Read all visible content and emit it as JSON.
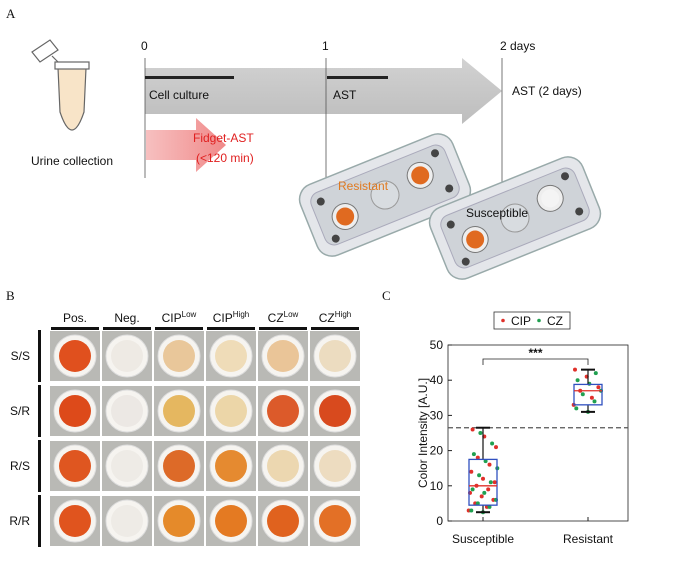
{
  "panel_a": {
    "label": "A",
    "tube_caption": "Urine collection",
    "timeline_ticks": [
      "0",
      "1",
      "2 days"
    ],
    "bar_labels": [
      "Cell culture",
      "AST"
    ],
    "arrow_caption": "AST (2 days)",
    "fidget_title": "Fidget-AST",
    "fidget_time": "(<120 min)",
    "device_labels": [
      "Resistant",
      "Susceptible"
    ]
  },
  "panel_b": {
    "label": "B",
    "columns": [
      {
        "name": "Pos."
      },
      {
        "name": "Neg."
      },
      {
        "name": "CIP",
        "sup": "Low"
      },
      {
        "name": "CIP",
        "sup": "High"
      },
      {
        "name": "CZ",
        "sup": "Low"
      },
      {
        "name": "CZ",
        "sup": "High"
      }
    ],
    "rows": [
      "S/S",
      "S/R",
      "R/S",
      "R/R"
    ]
  },
  "chart_data": {
    "type": "box",
    "panel_label": "C",
    "ylabel": "Color Intensity [A.U.]",
    "categories": [
      "Susceptible",
      "Resistant"
    ],
    "ylim": [
      0,
      50
    ],
    "yticks": [
      0,
      10,
      20,
      30,
      40,
      50
    ],
    "boxes": [
      {
        "min": 2.5,
        "q1": 4.5,
        "median": 10,
        "q3": 17.5,
        "max": 26.5
      },
      {
        "min": 31,
        "q1": 33,
        "median": 37,
        "q3": 38.8,
        "max": 43
      }
    ],
    "box_color": "#3050c0",
    "median_color": "#e0302a",
    "threshold": 26.5,
    "significance": "***",
    "series": [
      {
        "name": "CIP",
        "color": "#e0302a",
        "values": [
          [
            3,
            4,
            5,
            6,
            7,
            8,
            9,
            10,
            11,
            12,
            14,
            16,
            18,
            21,
            24,
            26
          ],
          [
            33,
            35,
            37,
            38,
            41,
            43
          ]
        ]
      },
      {
        "name": "CZ",
        "color": "#20a050",
        "values": [
          [
            2.5,
            3,
            4,
            5,
            6,
            8,
            9,
            11,
            13,
            15,
            17,
            19,
            22,
            25
          ],
          [
            31,
            32,
            34,
            36,
            37,
            39,
            40,
            42
          ]
        ]
      }
    ]
  }
}
